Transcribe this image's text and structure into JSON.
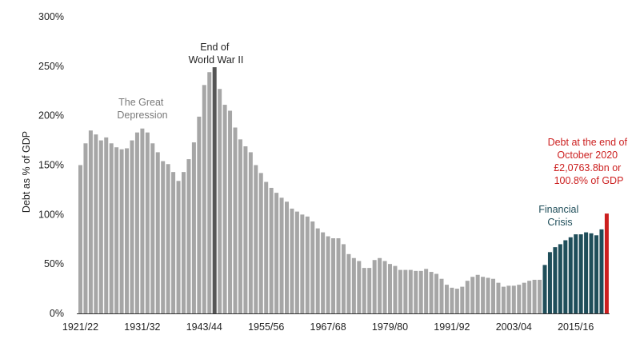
{
  "chart_data": {
    "type": "bar",
    "ylabel": "Debt as % of GDP",
    "ylim": [
      0,
      300
    ],
    "yticks": [
      "0%",
      "50%",
      "100%",
      "150%",
      "200%",
      "250%",
      "300%"
    ],
    "ytick_values": [
      0,
      50,
      100,
      150,
      200,
      250,
      300
    ],
    "xtick_labels": [
      "1921/22",
      "1931/32",
      "1943/44",
      "1955/56",
      "1967/68",
      "1979/80",
      "1991/92",
      "2003/04",
      "2015/16"
    ],
    "xtick_start_year": 1921,
    "first_year": 1921,
    "grid": false,
    "colors": {
      "default": "#a6a6a6",
      "ww2": "#555555",
      "financial_crisis": "#1f4e5a",
      "latest": "#cc1f1f",
      "axis": "#333333"
    },
    "values": [
      150,
      172,
      185,
      181,
      175,
      178,
      172,
      168,
      166,
      167,
      175,
      183,
      187,
      183,
      172,
      163,
      154,
      151,
      143,
      134,
      143,
      156,
      173,
      199,
      231,
      244,
      249,
      227,
      211,
      205,
      188,
      176,
      169,
      163,
      150,
      142,
      133,
      127,
      122,
      117,
      113,
      106,
      103,
      100,
      98,
      93,
      86,
      82,
      78,
      76,
      76,
      70,
      60,
      56,
      53,
      46,
      46,
      54,
      56,
      53,
      50,
      48,
      44,
      44,
      44,
      43,
      43,
      45,
      42,
      40,
      35,
      29,
      26,
      25,
      27,
      33,
      37,
      39,
      37,
      36,
      35,
      31,
      27,
      28,
      28,
      29,
      31,
      33,
      34,
      34,
      49,
      62,
      67,
      70,
      74,
      77,
      80,
      80,
      82,
      81,
      79,
      85,
      101
    ],
    "highlight": {
      "ww2_index": 26,
      "financial_crisis_start": 90,
      "financial_crisis_end": 101,
      "latest_index": 102
    },
    "annotations": {
      "great_depression": [
        "The Great",
        "Depression"
      ],
      "ww2": [
        "End of",
        "World War II"
      ],
      "financial_crisis": [
        "Financial",
        "Crisis"
      ],
      "latest": [
        "Debt at the end of",
        "October 2020",
        "£2,0763.8bn or",
        "100.8% of GDP"
      ]
    }
  }
}
